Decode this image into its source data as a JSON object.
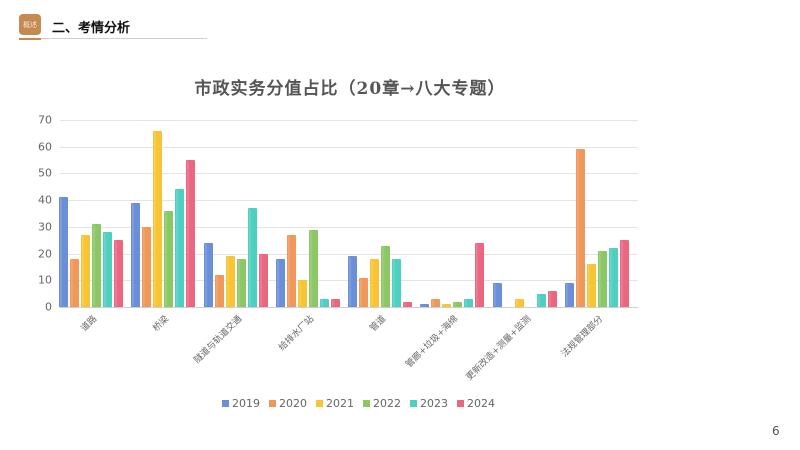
{
  "header": {
    "badge_text": "概述",
    "title": "二、考情分析"
  },
  "page_number": "6",
  "colors": {
    "2019": "#6a8fd8",
    "2020": "#f0975a",
    "2021": "#f7c534",
    "2022": "#8cc766",
    "2023": "#4ecfc0",
    "2024": "#ea6781"
  },
  "chart_data": {
    "type": "bar",
    "title": "市政实务分值占比（20章→八大专题）",
    "xlabel": "",
    "ylabel": "",
    "ylim": [
      0,
      70
    ],
    "yticks": [
      0,
      10,
      20,
      30,
      40,
      50,
      60,
      70
    ],
    "grid": true,
    "legend_position": "bottom",
    "categories": [
      "道路",
      "桥梁",
      "隧道与轨道交通",
      "给排水厂站",
      "管道",
      "管廊+垃圾+海绵",
      "更新改造+测量+监测",
      "法规管理部分"
    ],
    "series": [
      {
        "name": "2019",
        "values": [
          41,
          39,
          24,
          18,
          19,
          1,
          9,
          9
        ]
      },
      {
        "name": "2020",
        "values": [
          18,
          30,
          12,
          27,
          11,
          3,
          0,
          59
        ]
      },
      {
        "name": "2021",
        "values": [
          27,
          66,
          19,
          10,
          18,
          1,
          3,
          16
        ]
      },
      {
        "name": "2022",
        "values": [
          31,
          36,
          18,
          29,
          23,
          2,
          0,
          21
        ]
      },
      {
        "name": "2023",
        "values": [
          28,
          44,
          37,
          3,
          18,
          3,
          5,
          22
        ]
      },
      {
        "name": "2024",
        "values": [
          25,
          55,
          20,
          3,
          2,
          24,
          6,
          25
        ]
      }
    ]
  }
}
